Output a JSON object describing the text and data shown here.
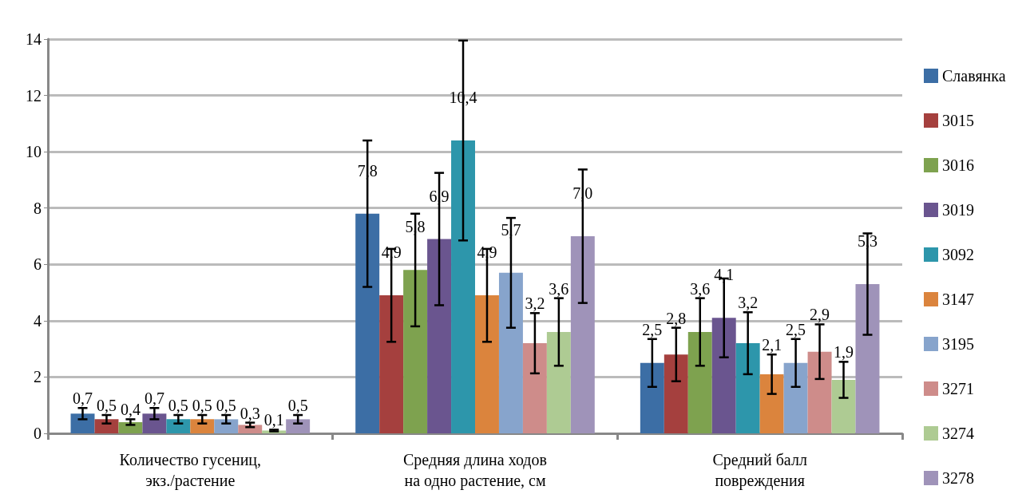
{
  "chart_data": {
    "type": "bar",
    "categories": [
      "Количество гусениц,\nэкз./растение",
      "Средняя длина ходов\nна одно растение, см",
      "Средний балл\nповреждения"
    ],
    "ylim": [
      0,
      14
    ],
    "yticks": [
      0,
      2,
      4,
      6,
      8,
      10,
      12,
      14
    ],
    "grid": "y",
    "legend": "right",
    "series": [
      {
        "name": "Славянка",
        "color": "#3c6ea5",
        "values": [
          0.7,
          7.8,
          2.5
        ],
        "errors": [
          0.2,
          2.6,
          0.85
        ],
        "value_labels": [
          "0,7",
          "7,8",
          "2,5"
        ]
      },
      {
        "name": "3015",
        "color": "#a5403e",
        "values": [
          0.5,
          4.9,
          2.8
        ],
        "errors": [
          0.15,
          1.65,
          0.95
        ],
        "value_labels": [
          "0,5",
          "4,9",
          "2,8"
        ]
      },
      {
        "name": "3016",
        "color": "#7ea24f",
        "values": [
          0.4,
          5.8,
          3.6
        ],
        "errors": [
          0.1,
          2.0,
          1.2
        ],
        "value_labels": [
          "0,4",
          "5,8",
          "3,6"
        ]
      },
      {
        "name": "3019",
        "color": "#6a558f",
        "values": [
          0.7,
          6.9,
          4.1
        ],
        "errors": [
          0.2,
          2.35,
          1.4
        ],
        "value_labels": [
          "0,7",
          "6,9",
          "4,1"
        ]
      },
      {
        "name": "3092",
        "color": "#2d96ab",
        "values": [
          0.5,
          10.4,
          3.2
        ],
        "errors": [
          0.15,
          3.55,
          1.1
        ],
        "value_labels": [
          "0,5",
          "10,4",
          "3,2"
        ]
      },
      {
        "name": "3147",
        "color": "#db843d",
        "values": [
          0.5,
          4.9,
          2.1
        ],
        "errors": [
          0.15,
          1.65,
          0.7
        ],
        "value_labels": [
          "0,5",
          "4,9",
          "2,1"
        ]
      },
      {
        "name": "3195",
        "color": "#87a4cc",
        "values": [
          0.5,
          5.7,
          2.5
        ],
        "errors": [
          0.15,
          1.95,
          0.85
        ],
        "value_labels": [
          "0,5",
          "5,7",
          "2,5"
        ]
      },
      {
        "name": "3271",
        "color": "#ce8c8a",
        "values": [
          0.3,
          3.2,
          2.9
        ],
        "errors": [
          0.08,
          1.07,
          0.97
        ],
        "value_labels": [
          "0,3",
          "3,2",
          "2,9"
        ]
      },
      {
        "name": "3274",
        "color": "#aecb93",
        "values": [
          0.1,
          3.6,
          1.9
        ],
        "errors": [
          0.03,
          1.2,
          0.64
        ],
        "value_labels": [
          "0,1",
          "3,6",
          "1,9"
        ]
      },
      {
        "name": "3278",
        "color": "#9f93b9",
        "values": [
          0.5,
          7.0,
          5.3
        ],
        "errors": [
          0.15,
          2.37,
          1.8
        ],
        "value_labels": [
          "0,5",
          "7,0",
          "5,3"
        ]
      }
    ]
  }
}
